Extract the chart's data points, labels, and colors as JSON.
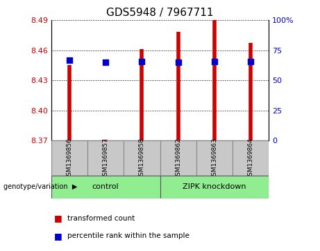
{
  "title": "GDS5948 / 7967711",
  "samples": [
    "GSM1369856",
    "GSM1369857",
    "GSM1369858",
    "GSM1369862",
    "GSM1369863",
    "GSM1369864"
  ],
  "bar_values": [
    8.445,
    8.371,
    8.461,
    8.478,
    8.49,
    8.467
  ],
  "bar_bottom": 8.37,
  "percentile_values": [
    8.45,
    8.448,
    8.449,
    8.448,
    8.449,
    8.449
  ],
  "ylim": [
    8.37,
    8.49
  ],
  "yticks": [
    8.37,
    8.4,
    8.43,
    8.46,
    8.49
  ],
  "y2tick_labels": [
    "0",
    "25",
    "50",
    "75",
    "100%"
  ],
  "bar_color": "#CC0000",
  "dot_color": "#0000CC",
  "title_fontsize": 11,
  "tick_fontsize": 8,
  "label_color_left": "#CC0000",
  "label_color_right": "#0000CC",
  "group_label": "genotype/variation",
  "legend_bar_label": "transformed count",
  "legend_dot_label": "percentile rank within the sample",
  "dot_size": 28,
  "bar_linewidth": 4,
  "control_label": "control",
  "zipk_label": "ZIPK knockdown",
  "group_bg_color": "#90EE90",
  "sample_bg_color": "#C8C8C8"
}
